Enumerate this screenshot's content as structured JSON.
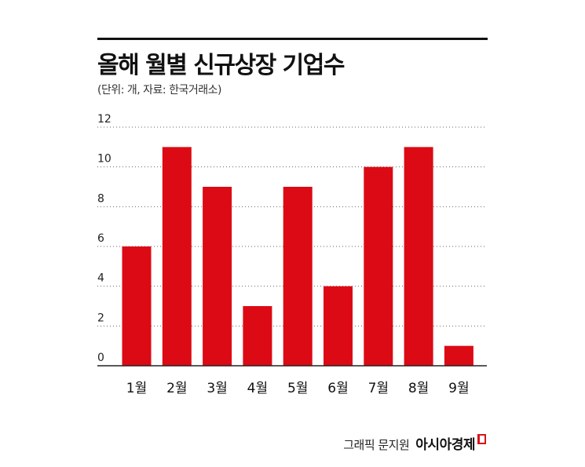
{
  "header": {
    "title": "올해 월별 신규상장 기업수",
    "subtitle": "(단위: 개, 자료: 한국거래소)"
  },
  "footer": {
    "author": "그래픽 문지원",
    "brand": "아시아경제"
  },
  "colors": {
    "bar": "#dc0a14",
    "grid": "#666666",
    "axis": "#222222",
    "brand_mark": "#d7141a"
  },
  "chart_data": {
    "type": "bar",
    "title": "올해 월별 신규상장 기업수",
    "subtitle": "(단위: 개, 자료: 한국거래소)",
    "categories": [
      "1월",
      "2월",
      "3월",
      "4월",
      "5월",
      "6월",
      "7월",
      "8월",
      "9월"
    ],
    "values": [
      6,
      11,
      9,
      3,
      9,
      4,
      10,
      11,
      1
    ],
    "ylim": [
      0,
      12
    ],
    "yticks": [
      "0",
      "2",
      "4",
      "6",
      "8",
      "10",
      "12"
    ],
    "ytick_values": [
      0,
      2,
      4,
      6,
      8,
      10,
      12
    ],
    "grid": true,
    "grid_style": "dotted",
    "legend": "none",
    "xlabel": "",
    "ylabel": ""
  }
}
